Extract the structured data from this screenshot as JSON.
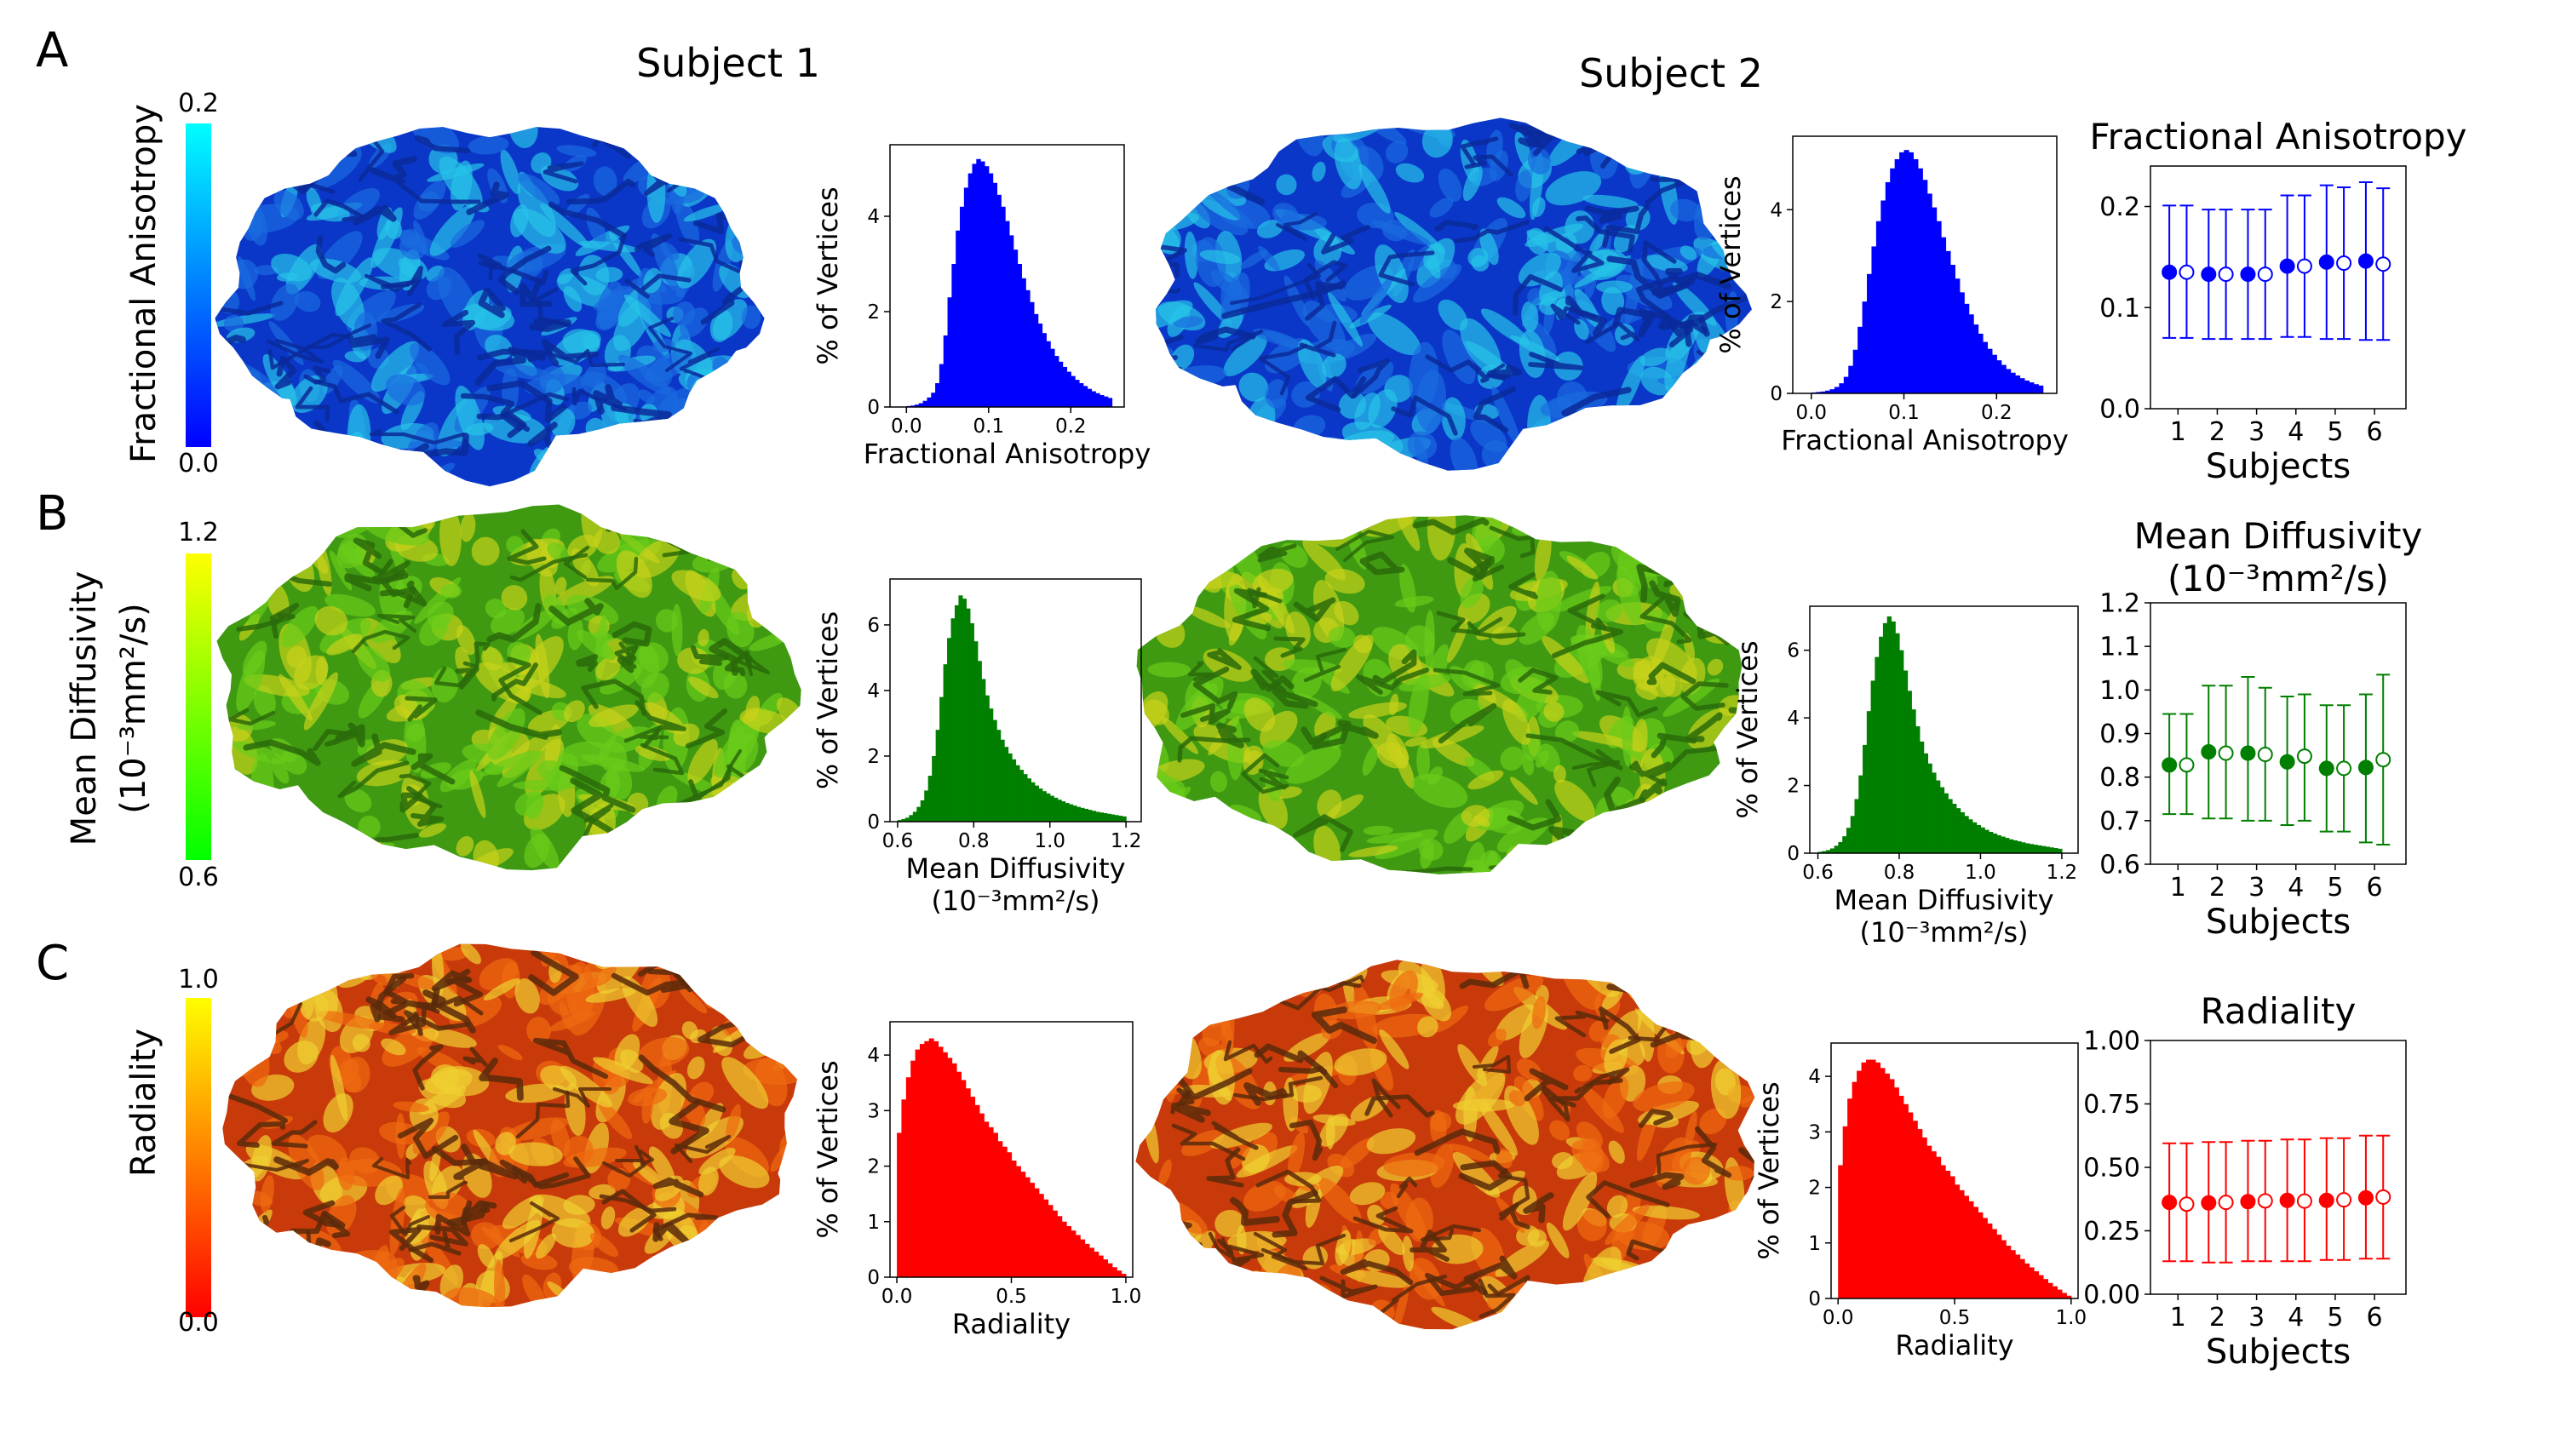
{
  "figure": {
    "headers": [
      "Subject 1",
      "Subject 2"
    ],
    "rows": [
      {
        "key": "fa",
        "panel_label": "A",
        "colorbar": {
          "label": "Fractional Anisotropy",
          "label_sub": "",
          "top_label": "0.2",
          "bottom_label": "0.0",
          "gradient": [
            "#00ffff",
            "#0000ff"
          ]
        },
        "brain_colors": [
          "#0a37c8",
          "#1a6be0",
          "#27c3e8",
          "#0b2a9a"
        ]
      },
      {
        "key": "md",
        "panel_label": "B",
        "colorbar": {
          "label": "Mean Diffusivity",
          "label_sub": "(10⁻³mm²/s)",
          "top_label": "1.2",
          "bottom_label": "0.6",
          "gradient": [
            "#ffff00",
            "#00ff00"
          ]
        },
        "brain_colors": [
          "#3f9a12",
          "#6acc1a",
          "#c8d21a",
          "#2a6a0a"
        ]
      },
      {
        "key": "rad",
        "panel_label": "C",
        "colorbar": {
          "label": "Radiality",
          "label_sub": "",
          "top_label": "1.0",
          "bottom_label": "0.0",
          "gradient": [
            "#ffff00",
            "#ff0000"
          ]
        },
        "brain_colors": [
          "#c83a0a",
          "#f06a10",
          "#f0d030",
          "#5a2a0a"
        ]
      }
    ]
  },
  "chart_data": [
    {
      "id": "fa-hist-s1",
      "type": "bar",
      "color": "#0000ff",
      "xlabel": "Fractional Anisotropy",
      "ylabel": "% of Vertices",
      "xlim": [
        -0.02,
        0.265
      ],
      "ylim": [
        0,
        5.5
      ],
      "xticks": [
        0.0,
        0.1,
        0.2
      ],
      "yticks": [
        0,
        2,
        4
      ],
      "xticklabels": [
        "0.0",
        "0.1",
        "0.2"
      ],
      "yticklabels": [
        "0",
        "2",
        "4"
      ],
      "x": [
        0.0,
        0.005,
        0.01,
        0.015,
        0.02,
        0.025,
        0.03,
        0.035,
        0.04,
        0.045,
        0.05,
        0.055,
        0.06,
        0.065,
        0.07,
        0.075,
        0.08,
        0.085,
        0.09,
        0.095,
        0.1,
        0.105,
        0.11,
        0.115,
        0.12,
        0.125,
        0.13,
        0.135,
        0.14,
        0.145,
        0.15,
        0.155,
        0.16,
        0.165,
        0.17,
        0.175,
        0.18,
        0.185,
        0.19,
        0.195,
        0.2,
        0.205,
        0.21,
        0.215,
        0.22,
        0.225,
        0.23,
        0.235,
        0.24,
        0.245
      ],
      "values": [
        0.02,
        0.03,
        0.05,
        0.08,
        0.13,
        0.2,
        0.3,
        0.5,
        0.9,
        1.5,
        2.3,
        3.0,
        3.7,
        4.2,
        4.6,
        4.9,
        5.1,
        5.2,
        5.15,
        5.05,
        4.9,
        4.7,
        4.45,
        4.2,
        3.9,
        3.6,
        3.3,
        3.0,
        2.7,
        2.45,
        2.2,
        1.95,
        1.75,
        1.55,
        1.38,
        1.22,
        1.07,
        0.95,
        0.84,
        0.74,
        0.65,
        0.57,
        0.5,
        0.44,
        0.38,
        0.33,
        0.29,
        0.25,
        0.22,
        0.19
      ]
    },
    {
      "id": "fa-hist-s2",
      "type": "bar",
      "color": "#0000ff",
      "xlabel": "Fractional Anisotropy",
      "ylabel": "% of Vertices",
      "xlim": [
        -0.02,
        0.265
      ],
      "ylim": [
        0,
        5.6
      ],
      "xticks": [
        0.0,
        0.1,
        0.2
      ],
      "yticks": [
        0,
        2,
        4
      ],
      "xticklabels": [
        "0.0",
        "0.1",
        "0.2"
      ],
      "yticklabels": [
        "0",
        "2",
        "4"
      ],
      "x": [
        0.0,
        0.005,
        0.01,
        0.015,
        0.02,
        0.025,
        0.03,
        0.035,
        0.04,
        0.045,
        0.05,
        0.055,
        0.06,
        0.065,
        0.07,
        0.075,
        0.08,
        0.085,
        0.09,
        0.095,
        0.1,
        0.105,
        0.11,
        0.115,
        0.12,
        0.125,
        0.13,
        0.135,
        0.14,
        0.145,
        0.15,
        0.155,
        0.16,
        0.165,
        0.17,
        0.175,
        0.18,
        0.185,
        0.19,
        0.195,
        0.2,
        0.205,
        0.21,
        0.215,
        0.22,
        0.225,
        0.23,
        0.235,
        0.24,
        0.245
      ],
      "values": [
        0.02,
        0.03,
        0.04,
        0.06,
        0.09,
        0.14,
        0.22,
        0.36,
        0.6,
        0.95,
        1.45,
        2.0,
        2.6,
        3.2,
        3.75,
        4.2,
        4.6,
        4.9,
        5.1,
        5.25,
        5.3,
        5.25,
        5.1,
        4.9,
        4.65,
        4.35,
        4.05,
        3.75,
        3.4,
        3.1,
        2.8,
        2.5,
        2.2,
        1.95,
        1.72,
        1.5,
        1.3,
        1.12,
        0.97,
        0.84,
        0.72,
        0.62,
        0.53,
        0.45,
        0.39,
        0.33,
        0.28,
        0.24,
        0.2,
        0.17
      ]
    },
    {
      "id": "fa-errbar",
      "type": "scatter",
      "color": "#0000ff",
      "title": "Fractional Anisotropy",
      "xlabel": "Subjects",
      "ylabel": "",
      "xlim": [
        0.3,
        6.8
      ],
      "ylim": [
        0,
        0.24
      ],
      "xticks": [
        1,
        2,
        3,
        4,
        5,
        6
      ],
      "xticklabels": [
        "1",
        "2",
        "3",
        "4",
        "5",
        "6"
      ],
      "yticks": [
        0.0,
        0.1,
        0.2
      ],
      "yticklabels": [
        "0.0",
        "0.1",
        "0.2"
      ],
      "subjects": [
        1,
        2,
        3,
        4,
        5,
        6
      ],
      "series": [
        {
          "marker": "filled",
          "mean": [
            0.135,
            0.133,
            0.133,
            0.141,
            0.145,
            0.146
          ],
          "lower": [
            0.07,
            0.069,
            0.069,
            0.071,
            0.069,
            0.068
          ],
          "upper": [
            0.201,
            0.197,
            0.197,
            0.211,
            0.221,
            0.224
          ]
        },
        {
          "marker": "open",
          "mean": [
            0.135,
            0.133,
            0.133,
            0.141,
            0.144,
            0.143
          ],
          "lower": [
            0.07,
            0.069,
            0.069,
            0.071,
            0.069,
            0.068
          ],
          "upper": [
            0.201,
            0.197,
            0.197,
            0.211,
            0.219,
            0.218
          ]
        }
      ]
    },
    {
      "id": "md-hist-s1",
      "type": "bar",
      "color": "#007f00",
      "xlabel": "Mean Diffusivity",
      "xlabel_sub": "(10⁻³mm²/s)",
      "ylabel": "% of Vertices",
      "xlim": [
        0.58,
        1.24
      ],
      "ylim": [
        0,
        7.4
      ],
      "xticks": [
        0.6,
        0.8,
        1.0,
        1.2
      ],
      "yticks": [
        0,
        2,
        4,
        6
      ],
      "xticklabels": [
        "0.6",
        "0.8",
        "1.0",
        "1.2"
      ],
      "yticklabels": [
        "0",
        "2",
        "4",
        "6"
      ],
      "x": [
        0.6,
        0.61,
        0.62,
        0.63,
        0.64,
        0.65,
        0.66,
        0.67,
        0.68,
        0.69,
        0.7,
        0.71,
        0.72,
        0.73,
        0.74,
        0.75,
        0.76,
        0.77,
        0.78,
        0.79,
        0.8,
        0.81,
        0.82,
        0.83,
        0.84,
        0.85,
        0.86,
        0.87,
        0.88,
        0.89,
        0.9,
        0.91,
        0.92,
        0.93,
        0.94,
        0.95,
        0.96,
        0.97,
        0.98,
        0.99,
        1.0,
        1.01,
        1.02,
        1.03,
        1.04,
        1.05,
        1.06,
        1.07,
        1.08,
        1.09,
        1.1,
        1.11,
        1.12,
        1.13,
        1.14,
        1.15,
        1.16,
        1.17,
        1.18,
        1.19
      ],
      "values": [
        0.05,
        0.08,
        0.12,
        0.2,
        0.3,
        0.45,
        0.65,
        0.95,
        1.4,
        2.0,
        2.8,
        3.8,
        4.8,
        5.6,
        6.2,
        6.6,
        6.9,
        6.8,
        6.5,
        6.05,
        5.5,
        4.9,
        4.35,
        3.85,
        3.45,
        3.1,
        2.8,
        2.5,
        2.28,
        2.08,
        1.9,
        1.72,
        1.58,
        1.45,
        1.32,
        1.2,
        1.1,
        1.01,
        0.93,
        0.86,
        0.79,
        0.73,
        0.67,
        0.62,
        0.57,
        0.53,
        0.49,
        0.45,
        0.42,
        0.39,
        0.36,
        0.33,
        0.3,
        0.28,
        0.26,
        0.24,
        0.22,
        0.2,
        0.18,
        0.16
      ]
    },
    {
      "id": "md-hist-s2",
      "type": "bar",
      "color": "#007f00",
      "xlabel": "Mean Diffusivity",
      "xlabel_sub": "(10⁻³mm²/s)",
      "ylabel": "% of Vertices",
      "xlim": [
        0.58,
        1.24
      ],
      "ylim": [
        0,
        7.3
      ],
      "xticks": [
        0.6,
        0.8,
        1.0,
        1.2
      ],
      "yticks": [
        0,
        2,
        4,
        6
      ],
      "xticklabels": [
        "0.6",
        "0.8",
        "1.0",
        "1.2"
      ],
      "yticklabels": [
        "0",
        "2",
        "4",
        "6"
      ],
      "x": [
        0.6,
        0.61,
        0.62,
        0.63,
        0.64,
        0.65,
        0.66,
        0.67,
        0.68,
        0.69,
        0.7,
        0.71,
        0.72,
        0.73,
        0.74,
        0.75,
        0.76,
        0.77,
        0.78,
        0.79,
        0.8,
        0.81,
        0.82,
        0.83,
        0.84,
        0.85,
        0.86,
        0.87,
        0.88,
        0.89,
        0.9,
        0.91,
        0.92,
        0.93,
        0.94,
        0.95,
        0.96,
        0.97,
        0.98,
        0.99,
        1.0,
        1.01,
        1.02,
        1.03,
        1.04,
        1.05,
        1.06,
        1.07,
        1.08,
        1.09,
        1.1,
        1.11,
        1.12,
        1.13,
        1.14,
        1.15,
        1.16,
        1.17,
        1.18,
        1.19
      ],
      "values": [
        0.04,
        0.06,
        0.09,
        0.14,
        0.22,
        0.33,
        0.5,
        0.75,
        1.1,
        1.6,
        2.3,
        3.2,
        4.2,
        5.1,
        5.8,
        6.4,
        6.8,
        7.0,
        6.85,
        6.5,
        6.0,
        5.4,
        4.8,
        4.25,
        3.75,
        3.3,
        2.95,
        2.65,
        2.38,
        2.15,
        1.95,
        1.77,
        1.6,
        1.46,
        1.33,
        1.21,
        1.1,
        1.0,
        0.91,
        0.83,
        0.76,
        0.69,
        0.63,
        0.58,
        0.53,
        0.49,
        0.45,
        0.41,
        0.38,
        0.35,
        0.32,
        0.29,
        0.27,
        0.25,
        0.23,
        0.21,
        0.19,
        0.17,
        0.15,
        0.13
      ]
    },
    {
      "id": "md-errbar",
      "type": "scatter",
      "color": "#007f00",
      "title": "Mean Diffusivity",
      "title_sub": "(10⁻³mm²/s)",
      "xlabel": "Subjects",
      "ylabel": "",
      "xlim": [
        0.3,
        6.8
      ],
      "ylim": [
        0.6,
        1.2
      ],
      "xticks": [
        1,
        2,
        3,
        4,
        5,
        6
      ],
      "xticklabels": [
        "1",
        "2",
        "3",
        "4",
        "5",
        "6"
      ],
      "yticks": [
        0.6,
        0.7,
        0.8,
        0.9,
        1.0,
        1.1,
        1.2
      ],
      "yticklabels": [
        "0.6",
        "0.7",
        "0.8",
        "0.9",
        "1.0",
        "1.1",
        "1.2"
      ],
      "subjects": [
        1,
        2,
        3,
        4,
        5,
        6
      ],
      "series": [
        {
          "marker": "filled",
          "mean": [
            0.828,
            0.858,
            0.855,
            0.835,
            0.82,
            0.822
          ],
          "lower": [
            0.715,
            0.705,
            0.7,
            0.69,
            0.675,
            0.65
          ],
          "upper": [
            0.945,
            1.01,
            1.03,
            0.985,
            0.965,
            0.99
          ]
        },
        {
          "marker": "open",
          "mean": [
            0.828,
            0.855,
            0.852,
            0.848,
            0.82,
            0.84
          ],
          "lower": [
            0.715,
            0.705,
            0.7,
            0.7,
            0.675,
            0.645
          ],
          "upper": [
            0.945,
            1.01,
            1.005,
            0.99,
            0.965,
            1.035
          ]
        }
      ]
    },
    {
      "id": "rad-hist-s1",
      "type": "bar",
      "color": "#ff0000",
      "xlabel": "Radiality",
      "ylabel": "% of Vertices",
      "xlim": [
        -0.03,
        1.03
      ],
      "ylim": [
        0,
        4.6
      ],
      "xticks": [
        0.0,
        0.5,
        1.0
      ],
      "yticks": [
        0,
        1,
        2,
        3,
        4
      ],
      "xticklabels": [
        "0.0",
        "0.5",
        "1.0"
      ],
      "yticklabels": [
        "0",
        "1",
        "2",
        "3",
        "4"
      ],
      "x": [
        0.0,
        0.02,
        0.04,
        0.06,
        0.08,
        0.1,
        0.12,
        0.14,
        0.16,
        0.18,
        0.2,
        0.22,
        0.24,
        0.26,
        0.28,
        0.3,
        0.32,
        0.34,
        0.36,
        0.38,
        0.4,
        0.42,
        0.44,
        0.46,
        0.48,
        0.5,
        0.52,
        0.54,
        0.56,
        0.58,
        0.6,
        0.62,
        0.64,
        0.66,
        0.68,
        0.7,
        0.72,
        0.74,
        0.76,
        0.78,
        0.8,
        0.82,
        0.84,
        0.86,
        0.88,
        0.9,
        0.92,
        0.94,
        0.96,
        0.98
      ],
      "values": [
        2.6,
        3.2,
        3.6,
        3.9,
        4.1,
        4.2,
        4.25,
        4.3,
        4.25,
        4.15,
        4.05,
        3.95,
        3.85,
        3.7,
        3.55,
        3.4,
        3.25,
        3.1,
        2.95,
        2.8,
        2.7,
        2.6,
        2.45,
        2.35,
        2.25,
        2.1,
        2.0,
        1.9,
        1.8,
        1.7,
        1.6,
        1.5,
        1.4,
        1.3,
        1.2,
        1.1,
        1.0,
        0.92,
        0.84,
        0.76,
        0.68,
        0.6,
        0.53,
        0.46,
        0.39,
        0.32,
        0.25,
        0.18,
        0.12,
        0.06
      ]
    },
    {
      "id": "rad-hist-s2",
      "type": "bar",
      "color": "#ff0000",
      "xlabel": "Radiality",
      "ylabel": "% of Vertices",
      "xlim": [
        -0.03,
        1.03
      ],
      "ylim": [
        0,
        4.6
      ],
      "xticks": [
        0.0,
        0.5,
        1.0
      ],
      "yticks": [
        0,
        1,
        2,
        3,
        4
      ],
      "xticklabels": [
        "0.0",
        "0.5",
        "1.0"
      ],
      "yticklabels": [
        "0",
        "1",
        "2",
        "3",
        "4"
      ],
      "x": [
        0.0,
        0.02,
        0.04,
        0.06,
        0.08,
        0.1,
        0.12,
        0.14,
        0.16,
        0.18,
        0.2,
        0.22,
        0.24,
        0.26,
        0.28,
        0.3,
        0.32,
        0.34,
        0.36,
        0.38,
        0.4,
        0.42,
        0.44,
        0.46,
        0.48,
        0.5,
        0.52,
        0.54,
        0.56,
        0.58,
        0.6,
        0.62,
        0.64,
        0.66,
        0.68,
        0.7,
        0.72,
        0.74,
        0.76,
        0.78,
        0.8,
        0.82,
        0.84,
        0.86,
        0.88,
        0.9,
        0.92,
        0.94,
        0.96,
        0.98
      ],
      "values": [
        2.4,
        3.1,
        3.6,
        3.9,
        4.1,
        4.25,
        4.3,
        4.3,
        4.25,
        4.15,
        4.05,
        3.95,
        3.8,
        3.65,
        3.5,
        3.35,
        3.2,
        3.05,
        2.9,
        2.75,
        2.65,
        2.55,
        2.4,
        2.3,
        2.2,
        2.05,
        1.95,
        1.85,
        1.75,
        1.65,
        1.55,
        1.45,
        1.35,
        1.25,
        1.15,
        1.05,
        0.95,
        0.87,
        0.79,
        0.71,
        0.63,
        0.56,
        0.49,
        0.42,
        0.35,
        0.28,
        0.22,
        0.16,
        0.1,
        0.05
      ]
    },
    {
      "id": "rad-errbar",
      "type": "scatter",
      "color": "#ff0000",
      "title": "Radiality",
      "xlabel": "Subjects",
      "ylabel": "",
      "xlim": [
        0.3,
        6.8
      ],
      "ylim": [
        0,
        1.0
      ],
      "xticks": [
        1,
        2,
        3,
        4,
        5,
        6
      ],
      "xticklabels": [
        "1",
        "2",
        "3",
        "4",
        "5",
        "6"
      ],
      "yticks": [
        0.0,
        0.25,
        0.5,
        0.75,
        1.0
      ],
      "yticklabels": [
        "0.00",
        "0.25",
        "0.50",
        "0.75",
        "1.00"
      ],
      "subjects": [
        1,
        2,
        3,
        4,
        5,
        6
      ],
      "series": [
        {
          "marker": "filled",
          "mean": [
            0.362,
            0.36,
            0.365,
            0.37,
            0.37,
            0.38
          ],
          "lower": [
            0.13,
            0.125,
            0.13,
            0.13,
            0.135,
            0.14
          ],
          "upper": [
            0.595,
            0.6,
            0.605,
            0.61,
            0.615,
            0.625
          ]
        },
        {
          "marker": "open",
          "mean": [
            0.355,
            0.362,
            0.368,
            0.367,
            0.372,
            0.383
          ],
          "lower": [
            0.13,
            0.125,
            0.13,
            0.13,
            0.135,
            0.14
          ],
          "upper": [
            0.595,
            0.6,
            0.605,
            0.61,
            0.615,
            0.625
          ]
        }
      ]
    }
  ]
}
